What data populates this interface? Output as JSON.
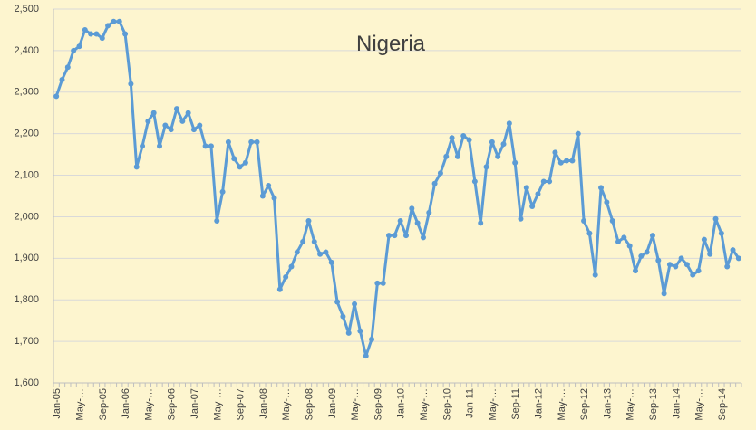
{
  "chart_data": {
    "type": "line",
    "title": "Nigeria",
    "xlabel": "",
    "ylabel": "",
    "ylim": [
      1600,
      2500
    ],
    "yticks": [
      "1,600",
      "1,700",
      "1,800",
      "1,900",
      "2,000",
      "2,100",
      "2,200",
      "2,300",
      "2,400",
      "2,500"
    ],
    "grid": true,
    "legend": "none",
    "color": "#5B9BD5",
    "x_start": "Jan-05",
    "x_tick_labels": [
      "Jan-05",
      "May-…",
      "Sep-05",
      "Jan-06",
      "May-…",
      "Sep-06",
      "Jan-07",
      "May-…",
      "Sep-07",
      "Jan-08",
      "May-…",
      "Sep-08",
      "Jan-09",
      "May-…",
      "Sep-09",
      "Jan-10",
      "May-…",
      "Sep-10",
      "Jan-11",
      "May-…",
      "Sep-11",
      "Jan-12",
      "May-…",
      "Sep-12",
      "Jan-13",
      "May-…",
      "Sep-13",
      "Jan-14",
      "May-…",
      "Sep-14"
    ],
    "series": [
      {
        "values": [
          2290,
          2330,
          2360,
          2400,
          2410,
          2450,
          2440,
          2440,
          2430,
          2460,
          2470,
          2470,
          2440,
          2320,
          2120,
          2170,
          2230,
          2250,
          2170,
          2220,
          2210,
          2260,
          2230,
          2250,
          2210,
          2220,
          2170,
          2170,
          1990,
          2060,
          2180,
          2140,
          2120,
          2130,
          2180,
          2180,
          2050,
          2075,
          2045,
          1825,
          1855,
          1880,
          1915,
          1940,
          1990,
          1940,
          1910,
          1915,
          1890,
          1795,
          1760,
          1720,
          1790,
          1725,
          1665,
          1705,
          1840,
          1840,
          1955,
          1955,
          1990,
          1955,
          2020,
          1985,
          1950,
          2010,
          2080,
          2105,
          2145,
          2190,
          2145,
          2195,
          2185,
          2085,
          1985,
          2120,
          2180,
          2145,
          2175,
          2225,
          2130,
          1995,
          2070,
          2025,
          2055,
          2085,
          2085,
          2155,
          2130,
          2135,
          2135,
          2200,
          1990,
          1960,
          1860,
          2070,
          2035,
          1990,
          1940,
          1950,
          1930,
          1870,
          1905,
          1915,
          1955,
          1895,
          1815,
          1885,
          1880,
          1900,
          1885,
          1860,
          1870,
          1945,
          1910,
          1995,
          1960,
          1880,
          1920,
          1900
        ]
      }
    ]
  }
}
